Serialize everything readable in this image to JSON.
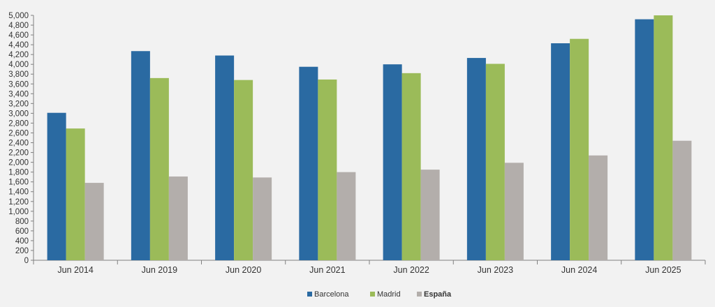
{
  "chart_data": {
    "type": "bar",
    "categories": [
      "Jun 2014",
      "Jun 2019",
      "Jun 2020",
      "Jun 2021",
      "Jun 2022",
      "Jun 2023",
      "Jun 2024",
      "Jun 2025"
    ],
    "series": [
      {
        "name": "Barcelona",
        "color": "#2a6aa2",
        "values": [
          3010,
          4270,
          4180,
          3950,
          4000,
          4130,
          4430,
          4920
        ]
      },
      {
        "name": "Madrid",
        "color": "#9bbb59",
        "values": [
          2690,
          3720,
          3680,
          3690,
          3820,
          4010,
          4520,
          5000
        ]
      },
      {
        "name": "España",
        "color": "#b3aeab",
        "values": [
          1580,
          1710,
          1690,
          1800,
          1850,
          1990,
          2140,
          2440
        ]
      }
    ],
    "ylim": [
      0,
      5000
    ],
    "y_ticks": [
      "0",
      "200",
      "400",
      "600",
      "800",
      "1,000",
      "1,200",
      "1,400",
      "1,600",
      "1,800",
      "2,000",
      "2,200",
      "2,400",
      "2,600",
      "2,800",
      "3,000",
      "3,200",
      "3,400",
      "3,600",
      "3,800",
      "4,000",
      "4,200",
      "4,400",
      "4,600",
      "4,800",
      "5,000"
    ],
    "y_tick_values": [
      0,
      200,
      400,
      600,
      800,
      1000,
      1200,
      1400,
      1600,
      1800,
      2000,
      2200,
      2400,
      2600,
      2800,
      3000,
      3200,
      3400,
      3600,
      3800,
      4000,
      4200,
      4400,
      4600,
      4800,
      5000
    ],
    "title": "",
    "xlabel": "",
    "ylabel": "",
    "grid": false,
    "legend_position": "bottom-center"
  }
}
